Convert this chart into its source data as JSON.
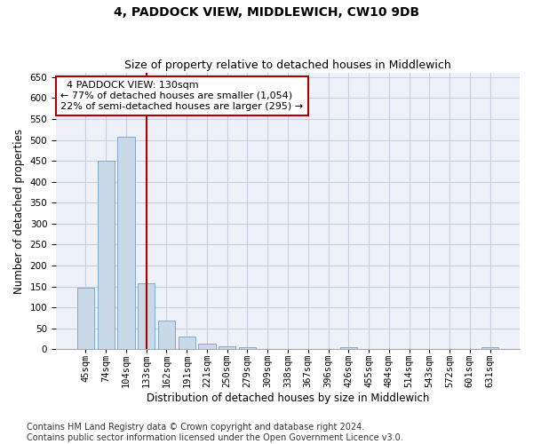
{
  "title": "4, PADDOCK VIEW, MIDDLEWICH, CW10 9DB",
  "subtitle": "Size of property relative to detached houses in Middlewich",
  "xlabel": "Distribution of detached houses by size in Middlewich",
  "ylabel": "Number of detached properties",
  "categories": [
    "45sqm",
    "74sqm",
    "104sqm",
    "133sqm",
    "162sqm",
    "191sqm",
    "221sqm",
    "250sqm",
    "279sqm",
    "309sqm",
    "338sqm",
    "367sqm",
    "396sqm",
    "426sqm",
    "455sqm",
    "484sqm",
    "514sqm",
    "543sqm",
    "572sqm",
    "601sqm",
    "631sqm"
  ],
  "values": [
    148,
    450,
    507,
    158,
    68,
    30,
    13,
    8,
    5,
    0,
    0,
    0,
    0,
    5,
    0,
    0,
    0,
    0,
    0,
    0,
    5
  ],
  "bar_color": "#c9d9e8",
  "bar_edge_color": "#7eaacc",
  "red_line_index": 3,
  "red_line_color": "#aa0000",
  "annotation_text": "  4 PADDOCK VIEW: 130sqm\n← 77% of detached houses are smaller (1,054)\n22% of semi-detached houses are larger (295) →",
  "annotation_box_color": "white",
  "annotation_box_edge_color": "#aa0000",
  "ylim": [
    0,
    660
  ],
  "yticks": [
    0,
    50,
    100,
    150,
    200,
    250,
    300,
    350,
    400,
    450,
    500,
    550,
    600,
    650
  ],
  "grid_color": "#c8d0e0",
  "background_color": "#eef2f8",
  "footer_text": "Contains HM Land Registry data © Crown copyright and database right 2024.\nContains public sector information licensed under the Open Government Licence v3.0.",
  "title_fontsize": 10,
  "subtitle_fontsize": 9,
  "xlabel_fontsize": 8.5,
  "ylabel_fontsize": 8.5,
  "annotation_fontsize": 8,
  "footer_fontsize": 7,
  "tick_fontsize": 7.5
}
